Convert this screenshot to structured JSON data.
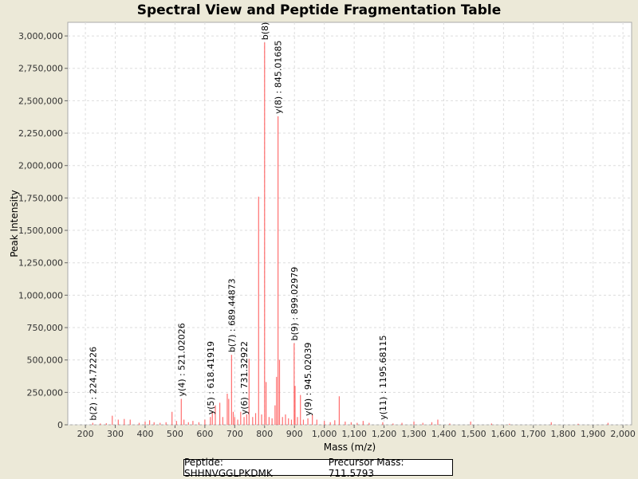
{
  "chart_data": {
    "type": "bar",
    "title": "Spectral View and Peptide Fragmentation Table",
    "xlabel": "Mass (m/z)",
    "ylabel": "Peak Intensity",
    "xlim": [
      141,
      2029
    ],
    "ylim": [
      0,
      3105000
    ],
    "xticks": [
      200,
      300,
      400,
      500,
      600,
      700,
      800,
      900,
      1000,
      1100,
      1200,
      1300,
      1400,
      1500,
      1600,
      1700,
      1800,
      1900,
      2000
    ],
    "yticks": [
      0,
      250000,
      500000,
      750000,
      1000000,
      1250000,
      1500000,
      1750000,
      2000000,
      2250000,
      2500000,
      2750000,
      3000000
    ],
    "grid": true,
    "bar_color": "#ff5555",
    "peaks": [
      [
        224.7,
        15000
      ],
      [
        250,
        10000
      ],
      [
        270,
        12000
      ],
      [
        290,
        70000
      ],
      [
        310,
        40000
      ],
      [
        330,
        45000
      ],
      [
        350,
        40000
      ],
      [
        380,
        15000
      ],
      [
        400,
        25000
      ],
      [
        415,
        35000
      ],
      [
        430,
        20000
      ],
      [
        450,
        15000
      ],
      [
        470,
        20000
      ],
      [
        490,
        100000
      ],
      [
        505,
        30000
      ],
      [
        521,
        200000
      ],
      [
        530,
        40000
      ],
      [
        545,
        20000
      ],
      [
        560,
        30000
      ],
      [
        580,
        20000
      ],
      [
        600,
        40000
      ],
      [
        618.4,
        60000
      ],
      [
        625,
        100000
      ],
      [
        635,
        150000
      ],
      [
        650,
        170000
      ],
      [
        660,
        60000
      ],
      [
        675,
        240000
      ],
      [
        680,
        200000
      ],
      [
        689.4,
        540000
      ],
      [
        695,
        100000
      ],
      [
        700,
        60000
      ],
      [
        710,
        40000
      ],
      [
        720,
        100000
      ],
      [
        731.3,
        60000
      ],
      [
        740,
        80000
      ],
      [
        748,
        510000
      ],
      [
        760,
        60000
      ],
      [
        770,
        90000
      ],
      [
        780,
        1760000
      ],
      [
        790,
        80000
      ],
      [
        800,
        2950000
      ],
      [
        805,
        330000
      ],
      [
        815,
        60000
      ],
      [
        825,
        50000
      ],
      [
        835,
        150000
      ],
      [
        840,
        370000
      ],
      [
        845,
        2380000
      ],
      [
        850,
        500000
      ],
      [
        860,
        60000
      ],
      [
        870,
        80000
      ],
      [
        880,
        50000
      ],
      [
        890,
        40000
      ],
      [
        899,
        630000
      ],
      [
        902,
        300000
      ],
      [
        910,
        60000
      ],
      [
        920,
        230000
      ],
      [
        930,
        40000
      ],
      [
        945,
        50000
      ],
      [
        960,
        80000
      ],
      [
        975,
        40000
      ],
      [
        1000,
        30000
      ],
      [
        1020,
        20000
      ],
      [
        1035,
        35000
      ],
      [
        1050,
        220000
      ],
      [
        1070,
        25000
      ],
      [
        1090,
        20000
      ],
      [
        1110,
        15000
      ],
      [
        1130,
        30000
      ],
      [
        1150,
        15000
      ],
      [
        1195.7,
        20000
      ],
      [
        1230,
        10000
      ],
      [
        1260,
        15000
      ],
      [
        1300,
        25000
      ],
      [
        1330,
        15000
      ],
      [
        1360,
        20000
      ],
      [
        1380,
        40000
      ],
      [
        1420,
        10000
      ],
      [
        1490,
        25000
      ],
      [
        1560,
        10000
      ],
      [
        1620,
        8000
      ],
      [
        1760,
        20000
      ],
      [
        1850,
        8000
      ],
      [
        1950,
        15000
      ]
    ],
    "annotations": [
      {
        "mz": 224.72226,
        "intensity": 15000,
        "label": "b(2) : 224.72226"
      },
      {
        "mz": 521.02026,
        "intensity": 200000,
        "label": "y(4) : 521.02026"
      },
      {
        "mz": 618.41919,
        "intensity": 60000,
        "label": "y(5) : 618.41919"
      },
      {
        "mz": 689.44873,
        "intensity": 540000,
        "label": "b(7) : 689.44873"
      },
      {
        "mz": 731.32922,
        "intensity": 60000,
        "label": "y(6) : 731.32922"
      },
      {
        "mz": 800,
        "intensity": 2950000,
        "label": "b(8)"
      },
      {
        "mz": 845.01685,
        "intensity": 2380000,
        "label": "y(8) : 845.01685"
      },
      {
        "mz": 899.02979,
        "intensity": 630000,
        "label": "b(9) : 899.02979"
      },
      {
        "mz": 945.02039,
        "intensity": 50000,
        "label": "y(9) : 945.02039"
      },
      {
        "mz": 1195.68115,
        "intensity": 20000,
        "label": "y(11) : 1195.68115"
      }
    ]
  },
  "legend": {
    "peptide": "Peptide: SHHNVGGLPKDMK",
    "precursor": "Precursor Mass: 711.5793"
  }
}
